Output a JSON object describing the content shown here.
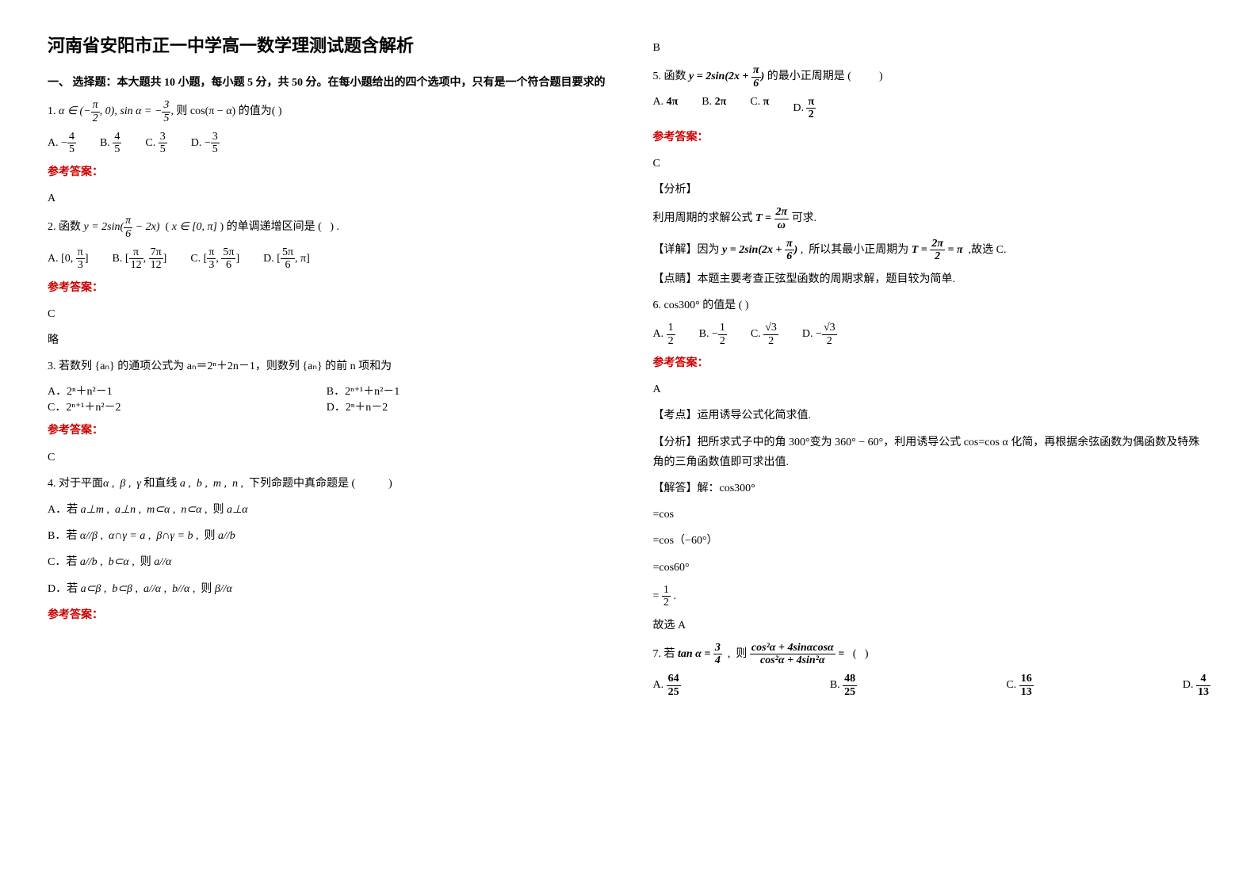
{
  "title": "河南省安阳市正一中学高一数学理测试题含解析",
  "section1_intro": "一、 选择题：本大题共 10 小题，每小题 5 分，共 50 分。在每小题给出的四个选项中，只有是一个符合题目要求的",
  "q1": {
    "stem_prefix": "1. ",
    "stem_formula": "α ∈ (−π/2, 0), sin α = −3/5,",
    "stem_suffix": "  则 cos(π − α)  的值为(          )",
    "opts": {
      "A": "−4/5",
      "B": "4/5",
      "C": "3/5",
      "D": "−3/5"
    },
    "ans_label": "参考答案：",
    "ans": "A"
  },
  "q2": {
    "stem": "2. 函数 y = 2sin(π/6 − 2x)  ( x ∈ [0, π] ) 的单调递增区间是 (    ) .",
    "opts": {
      "A": "[0, π/3]",
      "B": "[π/12, 7π/12]",
      "C": "[π/3, 5π/6]",
      "D": "[5π/6, π]"
    },
    "ans_label": "参考答案：",
    "ans": "C",
    "note": "略"
  },
  "q3": {
    "stem": "3. 若数列 {aₙ} 的通项公式为 aₙ＝2ⁿ＋2n－1，则数列 {aₙ} 的前 n 项和为",
    "opts": {
      "A": "2ⁿ＋n²－1",
      "B": "2ⁿ⁺¹＋n²－1",
      "C": "2ⁿ⁺¹＋n²－2",
      "D": "2ⁿ＋n－2"
    },
    "ans_label": "参考答案：",
    "ans": "C"
  },
  "q4": {
    "stem": "4. 对于平面α ,  β ,  γ 和直线 a ,  b ,  m ,  n ,  下列命题中真命题是 (                )",
    "opts": {
      "A": "若 a⊥m ,  a⊥n ,  m⊂α ,  n⊂α ,  则 a⊥α",
      "B": "若 α//β ,  α∩γ = a ,  β∩γ = b ,  则 a//b",
      "C": "若 a//b ,  b⊂α ,  则 a//α",
      "D": "若 a⊂β ,  b⊂β ,  a//α ,  b//α ,  则 β//α"
    },
    "ans_label": "参考答案：",
    "ans": "B"
  },
  "q5": {
    "stem": "5. 函数 y = 2sin(2x + π/6) 的最小正周期是 (            )",
    "opts": {
      "A": "4π",
      "B": "2π",
      "C": "π",
      "D": "π/2"
    },
    "ans_label": "参考答案：",
    "ans": "C",
    "analysis_label": "【分析】",
    "analysis": "利用周期的求解公式 T = 2π/ω 可求.",
    "detail_label": "【详解】",
    "detail": "因为 y = 2sin(2x + π/6) ,  所以其最小正周期为 T = 2π/2 = π  ,故选 C.",
    "point_label": "【点睛】",
    "point": "本题主要考查正弦型函数的周期求解，题目较为简单."
  },
  "q6": {
    "stem": "6. cos300° 的值是 (      )",
    "opts": {
      "A": "1/2",
      "B": "−1/2",
      "C": "√3/2",
      "D": "−√3/2"
    },
    "ans_label": "参考答案：",
    "ans": "A",
    "point_label": "【考点】",
    "point": "运用诱导公式化简求值.",
    "analysis_label": "【分析】",
    "analysis": "把所求式子中的角 300°变为 360° − 60°，利用诱导公式 cos=cos α 化简，再根据余弦函数为偶函数及特殊角的三角函数值即可求出值.",
    "solve_label": "【解答】",
    "solve_lines": [
      "解：cos300°",
      "=cos",
      "=cos（−60°）",
      "=cos60°",
      "= 1/2 ."
    ],
    "choose": "故选 A"
  },
  "q7": {
    "stem": "7. 若 tan α = 3/4  ,  则  (cos²α + 4sinαcosα) / (cos²α + 4sin²α) =    (    )",
    "opts": {
      "A": "64/25",
      "B": "48/25",
      "C": "16/13",
      "D": "4/13"
    }
  },
  "labels": {
    "A": "A.",
    "B": "B.",
    "C": "C.",
    "D": "D."
  },
  "colors": {
    "text": "#000000",
    "answer_red": "#cc0000",
    "background": "#ffffff"
  }
}
